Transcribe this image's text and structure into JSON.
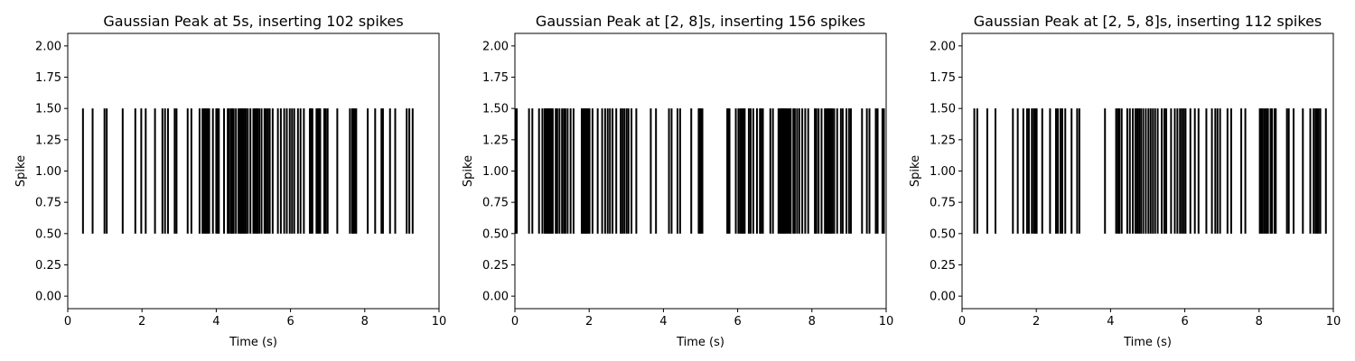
{
  "chart_data": [
    {
      "type": "spike_raster",
      "title": "Gaussian Peak at 5s, inserting 102 spikes",
      "xlabel": "Time (s)",
      "ylabel": "Spike",
      "xlim": [
        0,
        10
      ],
      "ylim": [
        -0.1,
        2.1
      ],
      "spike_y_range": [
        0.5,
        1.5
      ],
      "xticks": [
        "0",
        "2",
        "4",
        "6",
        "8",
        "10"
      ],
      "yticks": [
        "0.00",
        "0.25",
        "0.50",
        "0.75",
        "1.00",
        "1.25",
        "1.50",
        "1.75",
        "2.00"
      ],
      "spike_count": 102,
      "spike_times": [
        0.41,
        0.67,
        0.99,
        1.05,
        1.48,
        1.82,
        1.98,
        2.1,
        2.35,
        2.55,
        2.62,
        2.7,
        2.88,
        2.93,
        3.23,
        3.33,
        3.55,
        3.63,
        3.66,
        3.7,
        3.73,
        3.77,
        3.81,
        3.91,
        4.0,
        4.03,
        4.07,
        4.21,
        4.31,
        4.35,
        4.4,
        4.43,
        4.47,
        4.53,
        4.6,
        4.64,
        4.67,
        4.7,
        4.73,
        4.77,
        4.8,
        4.85,
        4.92,
        5.0,
        5.04,
        5.08,
        5.11,
        5.16,
        5.22,
        5.3,
        5.34,
        5.39,
        5.44,
        5.52,
        5.66,
        5.74,
        5.83,
        5.9,
        5.98,
        6.04,
        6.1,
        6.2,
        6.27,
        6.36,
        6.52,
        6.55,
        6.59,
        6.7,
        6.73,
        6.77,
        6.8,
        6.91,
        6.95,
        7.0,
        7.26,
        7.6,
        7.66,
        7.69,
        7.73,
        7.77,
        8.08,
        8.28,
        8.45,
        8.49,
        8.68,
        8.82,
        9.13,
        9.2,
        9.29
      ]
    },
    {
      "type": "spike_raster",
      "title": "Gaussian Peak at [2, 8]s, inserting 156 spikes",
      "xlabel": "Time (s)",
      "ylabel": "Spike",
      "xlim": [
        0,
        10
      ],
      "ylim": [
        -0.1,
        2.1
      ],
      "spike_y_range": [
        0.5,
        1.5
      ],
      "xticks": [
        "0",
        "2",
        "4",
        "6",
        "8",
        "10"
      ],
      "yticks": [
        "0.00",
        "0.25",
        "0.50",
        "0.75",
        "1.00",
        "1.25",
        "1.50",
        "1.75",
        "2.00"
      ],
      "spike_count": 156,
      "spike_times": [
        0.02,
        0.05,
        0.38,
        0.47,
        0.65,
        0.74,
        0.8,
        0.84,
        0.87,
        0.9,
        0.93,
        0.96,
        0.99,
        1.02,
        1.1,
        1.14,
        1.2,
        1.27,
        1.32,
        1.36,
        1.42,
        1.5,
        1.58,
        1.8,
        1.83,
        1.86,
        1.89,
        1.92,
        1.95,
        1.98,
        2.01,
        2.09,
        2.23,
        2.35,
        2.43,
        2.5,
        2.56,
        2.63,
        2.73,
        2.85,
        2.9,
        2.95,
        3.01,
        3.06,
        3.14,
        3.27,
        3.66,
        3.8,
        4.15,
        4.22,
        4.38,
        4.45,
        4.75,
        4.95,
        4.98,
        5.01,
        5.05,
        5.72,
        5.75,
        5.78,
        5.95,
        6.02,
        6.07,
        6.11,
        6.15,
        6.19,
        6.3,
        6.35,
        6.42,
        6.52,
        6.6,
        6.63,
        6.68,
        6.88,
        6.95,
        7.1,
        7.14,
        7.17,
        7.2,
        7.23,
        7.26,
        7.29,
        7.32,
        7.36,
        7.4,
        7.43,
        7.5,
        7.54,
        7.6,
        7.66,
        7.74,
        7.82,
        7.9,
        8.08,
        8.12,
        8.18,
        8.26,
        8.35,
        8.38,
        8.42,
        8.45,
        8.48,
        8.52,
        8.55,
        8.6,
        8.68,
        8.78,
        8.83,
        8.93,
        9.0,
        9.05,
        9.35,
        9.48,
        9.55,
        9.72,
        9.77,
        9.9,
        9.94
      ]
    },
    {
      "type": "spike_raster",
      "title": "Gaussian Peak at [2, 5, 8]s, inserting 112 spikes",
      "xlabel": "Time (s)",
      "ylabel": "Spike",
      "xlim": [
        0,
        10
      ],
      "ylim": [
        -0.1,
        2.1
      ],
      "spike_y_range": [
        0.5,
        1.5
      ],
      "xticks": [
        "0",
        "2",
        "4",
        "6",
        "8",
        "10"
      ],
      "yticks": [
        "0.00",
        "0.25",
        "0.50",
        "0.75",
        "1.00",
        "1.25",
        "1.50",
        "1.75",
        "2.00"
      ],
      "spike_count": 112,
      "spike_times": [
        0.33,
        0.41,
        0.68,
        0.9,
        1.37,
        1.5,
        1.65,
        1.75,
        1.8,
        1.88,
        1.93,
        1.97,
        2.01,
        2.16,
        2.37,
        2.53,
        2.58,
        2.65,
        2.7,
        2.78,
        2.95,
        3.1,
        3.16,
        3.85,
        4.15,
        4.2,
        4.24,
        4.3,
        4.45,
        4.52,
        4.6,
        4.67,
        4.72,
        4.77,
        4.82,
        4.88,
        4.95,
        5.02,
        5.08,
        5.14,
        5.2,
        5.27,
        5.38,
        5.45,
        5.5,
        5.63,
        5.73,
        5.8,
        5.87,
        5.92,
        5.97,
        6.02,
        6.15,
        6.27,
        6.37,
        6.58,
        6.73,
        6.82,
        6.88,
        6.95,
        7.15,
        7.25,
        7.52,
        7.63,
        8.02,
        8.06,
        8.1,
        8.15,
        8.2,
        8.24,
        8.31,
        8.35,
        8.42,
        8.45,
        8.75,
        8.8,
        8.93,
        9.18,
        9.38,
        9.47,
        9.52,
        9.56,
        9.6,
        9.65,
        9.8
      ]
    }
  ]
}
